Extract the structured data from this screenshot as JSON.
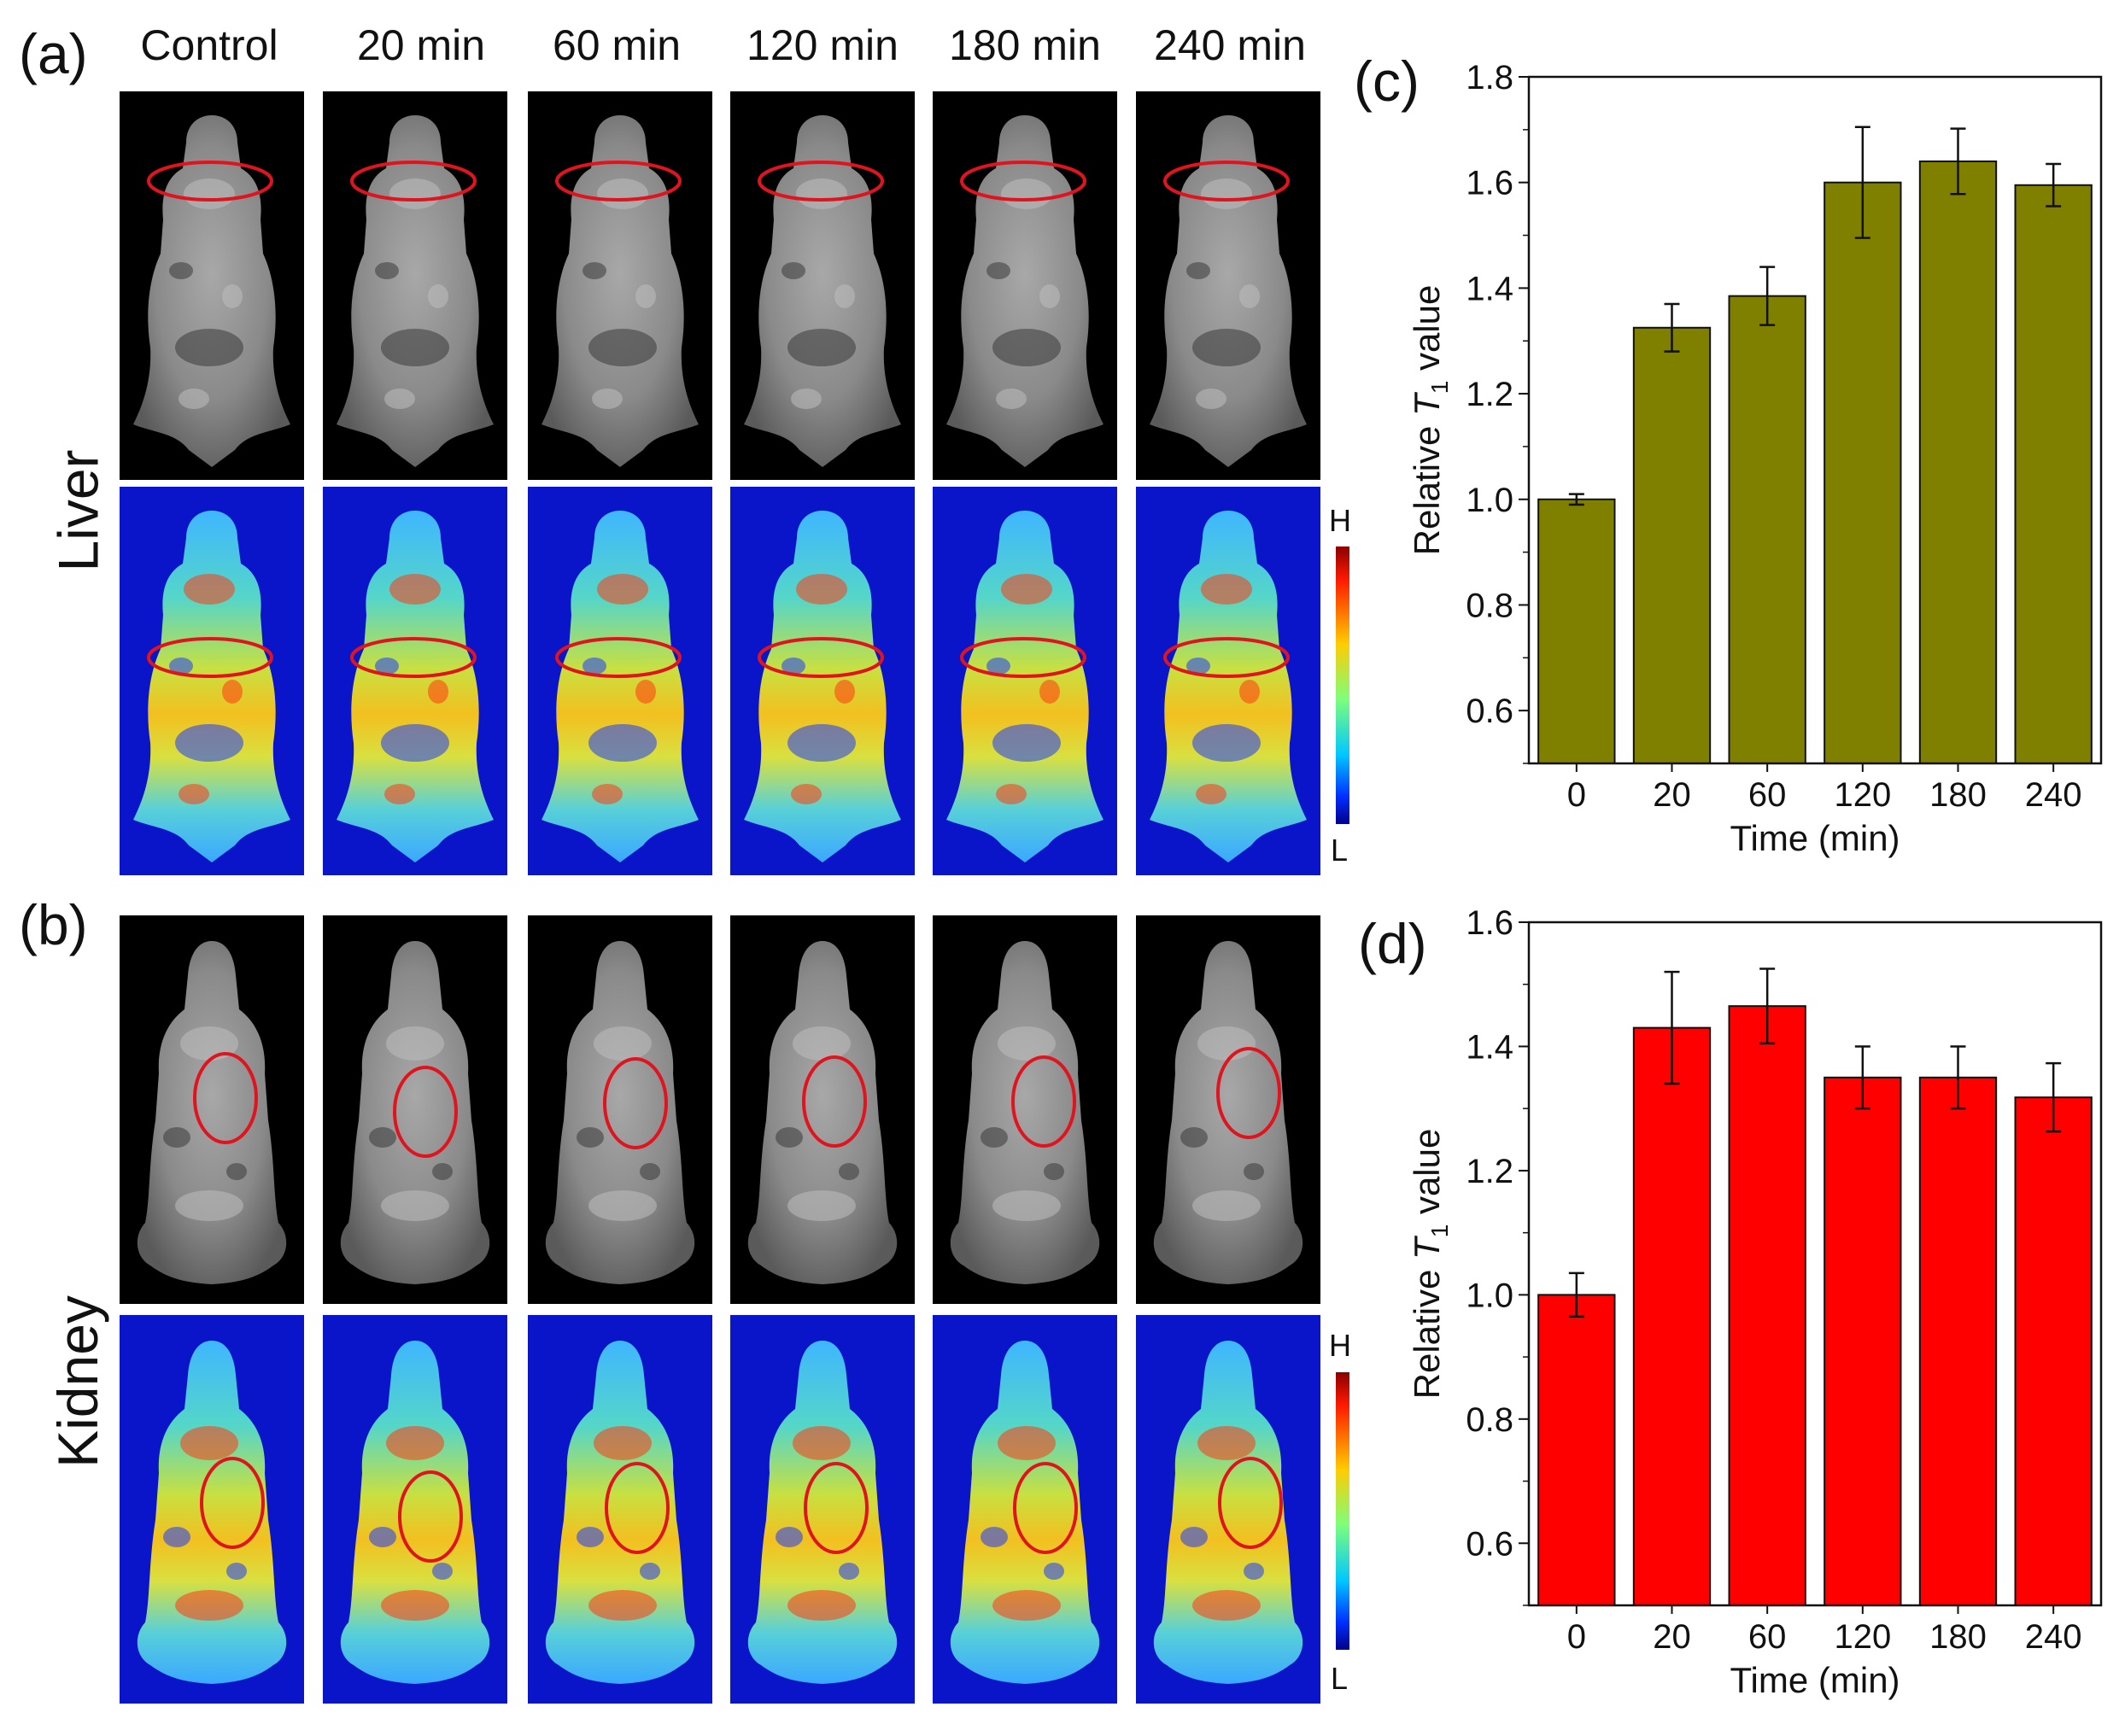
{
  "panels": {
    "a": "(a)",
    "b": "(b)",
    "c": "(c)",
    "d": "(d)"
  },
  "time_labels": [
    "Control",
    "20 min",
    "60 min",
    "120 min",
    "180 min",
    "240 min"
  ],
  "row_labels": {
    "liver": "Liver",
    "kidney": "Kidney"
  },
  "colorbar": {
    "high": "H",
    "low": "L"
  },
  "colors": {
    "liver_bar": "#808000",
    "kidney_bar": "#ff0000",
    "roi_circle": "#e0141e",
    "image_background": "#000000",
    "heatmap_background": "#0a14c8"
  },
  "chart_data": [
    {
      "type": "bar",
      "categories": [
        "0",
        "20",
        "60",
        "120",
        "180",
        "240"
      ],
      "values": [
        1.0,
        1.325,
        1.385,
        1.6,
        1.64,
        1.595
      ],
      "errors": [
        0.01,
        0.045,
        0.055,
        0.105,
        0.062,
        0.04
      ],
      "xlabel": "Time (min)",
      "ylabel_prefix": "Relative ",
      "ylabel_var": "T",
      "ylabel_sub": "1",
      "ylabel_suffix": " value",
      "ylim": [
        0.5,
        1.8
      ],
      "yticks": [
        "0.6",
        "0.8",
        "1.0",
        "1.2",
        "1.4",
        "1.6",
        "1.8"
      ],
      "color": "#808000"
    },
    {
      "type": "bar",
      "categories": [
        "0",
        "20",
        "60",
        "120",
        "180",
        "240"
      ],
      "values": [
        1.0,
        1.43,
        1.465,
        1.35,
        1.35,
        1.318
      ],
      "errors": [
        0.035,
        0.09,
        0.06,
        0.05,
        0.05,
        0.055
      ],
      "xlabel": "Time (min)",
      "ylabel_prefix": "Relative ",
      "ylabel_var": "T",
      "ylabel_sub": "1",
      "ylabel_suffix": " value",
      "ylim": [
        0.5,
        1.6
      ],
      "yticks": [
        "0.6",
        "0.8",
        "1.0",
        "1.2",
        "1.4",
        "1.6"
      ],
      "color": "#ff0000"
    }
  ]
}
